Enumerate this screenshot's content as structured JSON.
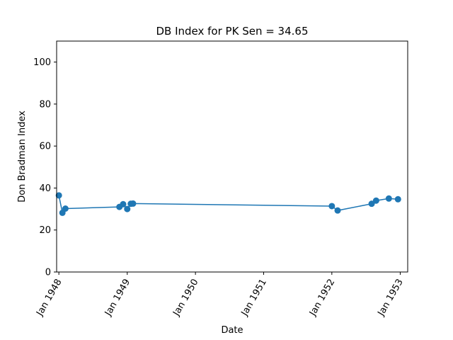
{
  "chart_data": {
    "type": "line",
    "title": "DB Index for PK Sen = 34.65",
    "xlabel": "Date",
    "ylabel": "Don Bradman Index",
    "xlim": [
      "1947-12-20",
      "1953-02-10"
    ],
    "ylim": [
      0,
      110
    ],
    "grid": false,
    "color": "#1f77b4",
    "x_ticks": [
      {
        "date": "1948-01-01",
        "label": "Jan 1948"
      },
      {
        "date": "1949-01-01",
        "label": "Jan 1949"
      },
      {
        "date": "1950-01-01",
        "label": "Jan 1950"
      },
      {
        "date": "1951-01-01",
        "label": "Jan 1951"
      },
      {
        "date": "1952-01-01",
        "label": "Jan 1952"
      },
      {
        "date": "1953-01-01",
        "label": "Jan 1953"
      }
    ],
    "y_ticks": [
      0,
      20,
      40,
      60,
      80,
      100
    ],
    "series": [
      {
        "points": [
          {
            "x": "1948-01-01",
            "y": 36.5
          },
          {
            "x": "1948-01-20",
            "y": 28.2
          },
          {
            "x": "1948-02-05",
            "y": 30.2
          },
          {
            "x": "1948-11-20",
            "y": 31.0
          },
          {
            "x": "1948-12-10",
            "y": 32.3
          },
          {
            "x": "1949-01-01",
            "y": 30.0
          },
          {
            "x": "1949-01-20",
            "y": 32.5
          },
          {
            "x": "1949-02-01",
            "y": 32.6
          },
          {
            "x": "1952-01-01",
            "y": 31.4
          },
          {
            "x": "1952-02-01",
            "y": 29.3
          },
          {
            "x": "1952-08-01",
            "y": 32.5
          },
          {
            "x": "1952-08-25",
            "y": 34.0
          },
          {
            "x": "1952-11-01",
            "y": 35.0
          },
          {
            "x": "1952-12-20",
            "y": 34.65
          }
        ]
      }
    ]
  }
}
